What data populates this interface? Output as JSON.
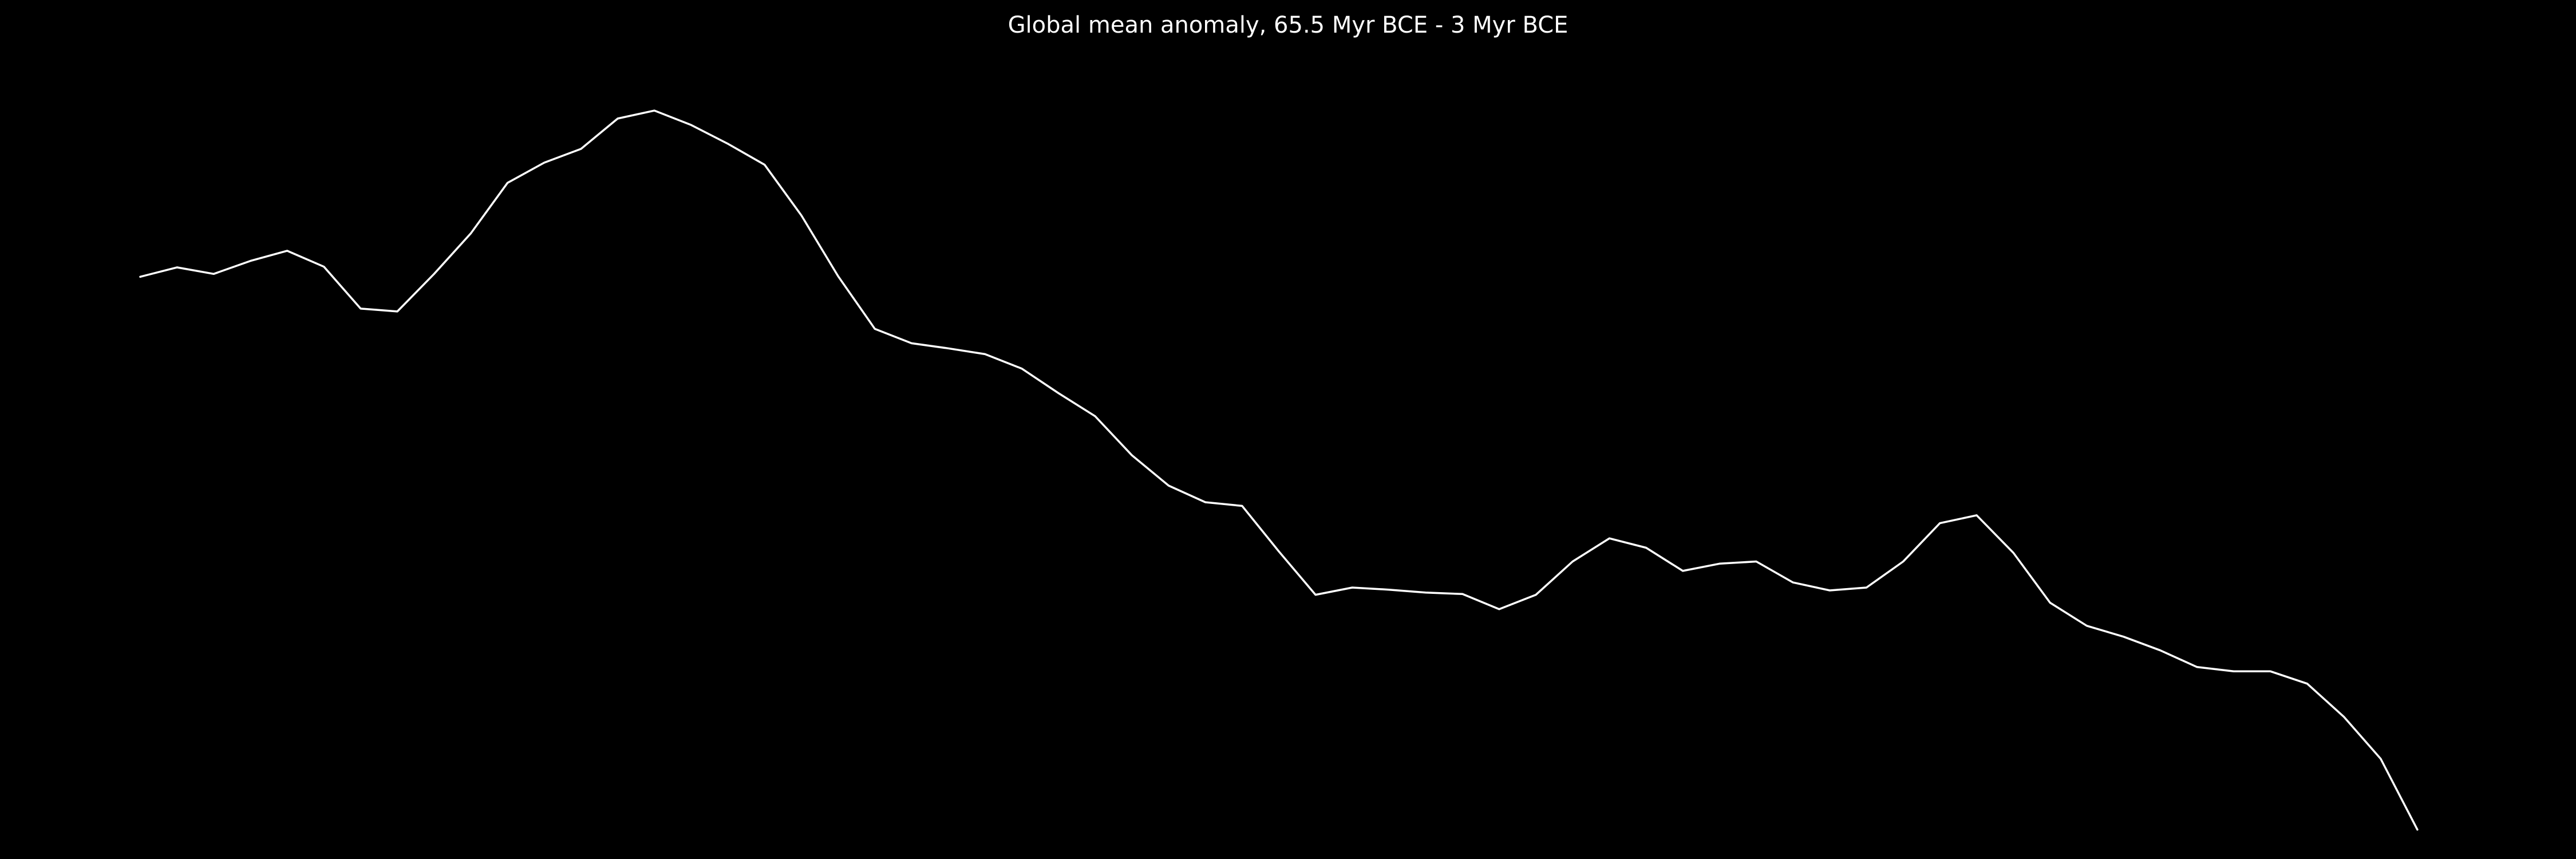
{
  "chart_data": {
    "type": "line",
    "title": "Global mean anomaly, 65.5 Myr BCE - 3 Myr BCE",
    "xlabel": "",
    "ylabel": "",
    "axes_visible": false,
    "grid": false,
    "legend": "none",
    "xlim": [
      65.5,
      3
    ],
    "ylim": [
      -0.5,
      10
    ],
    "series": [
      {
        "color": "#ffffff",
        "x": [
          65.5,
          64.5,
          63.5,
          62.5,
          61.5,
          60.5,
          59.5,
          58.5,
          57.5,
          56.5,
          55.5,
          54.5,
          53.5,
          52.5,
          51.5,
          50.5,
          49.5,
          48.5,
          47.5,
          46.5,
          45.5,
          44.5,
          43.5,
          42.5,
          41.5,
          40.5,
          39.5,
          38.5,
          37.5,
          36.5,
          35.5,
          34.5,
          33.5,
          32.5,
          31.5,
          30.5,
          29.5,
          28.5,
          27.5,
          26.5,
          25.5,
          24.5,
          23.5,
          22.5,
          21.5,
          20.5,
          19.5,
          18.5,
          17.5,
          16.5,
          15.5,
          14.5,
          13.5,
          12.5,
          11.5,
          10.5,
          9.5,
          8.5,
          7.5,
          6.5,
          5.5,
          4.5,
          3.5
        ],
        "values": [
          7.2,
          7.33,
          7.24,
          7.42,
          7.56,
          7.34,
          6.76,
          6.72,
          7.24,
          7.8,
          8.5,
          8.78,
          8.97,
          9.39,
          9.5,
          9.3,
          9.04,
          8.75,
          8.05,
          7.21,
          6.48,
          6.28,
          6.21,
          6.13,
          5.93,
          5.59,
          5.27,
          4.73,
          4.31,
          4.08,
          4.03,
          3.4,
          2.8,
          2.9,
          2.87,
          2.83,
          2.81,
          2.6,
          2.8,
          3.26,
          3.58,
          3.45,
          3.13,
          3.23,
          3.26,
          2.97,
          2.86,
          2.9,
          3.26,
          3.79,
          3.9,
          3.38,
          2.69,
          2.37,
          2.22,
          2.03,
          1.8,
          1.74,
          1.74,
          1.57,
          1.11,
          0.53,
          -0.45
        ]
      }
    ]
  }
}
